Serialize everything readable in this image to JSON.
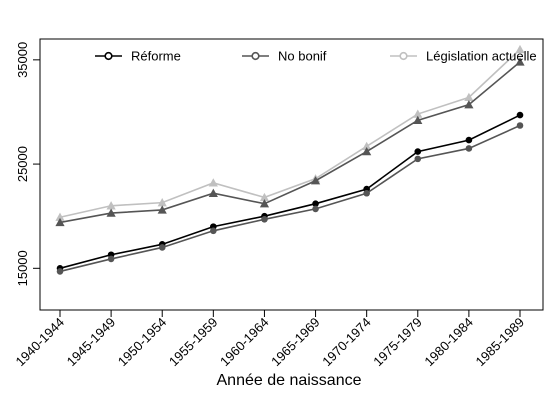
{
  "chart_data": {
    "type": "line",
    "title": "",
    "xlabel": "Année de naissance",
    "ylabel": "",
    "categories": [
      "1940-1944",
      "1945-1949",
      "1950-1954",
      "1955-1959",
      "1960-1964",
      "1965-1969",
      "1970-1974",
      "1975-1979",
      "1980-1984",
      "1985-1989"
    ],
    "ylim": [
      11000,
      37000
    ],
    "yticks": [
      "15000",
      "25000",
      "35000"
    ],
    "legend_position": "top",
    "series": [
      {
        "name": "Réforme",
        "marker": "circle",
        "color": "#000000",
        "values": [
          15000,
          16300,
          17300,
          19000,
          20000,
          21200,
          22600,
          26200,
          27300,
          29700
        ]
      },
      {
        "name": "No bonif",
        "marker": "circle",
        "color": "#555555",
        "values": [
          14700,
          15900,
          17000,
          18600,
          19700,
          20700,
          22200,
          25500,
          26500,
          28700
        ]
      },
      {
        "name": "Législation actuelle",
        "marker": "triangle",
        "color": "#c0c0c0",
        "values": [
          19900,
          21000,
          21300,
          23200,
          21800,
          23600,
          26700,
          29800,
          31400,
          36000
        ]
      },
      {
        "name": "",
        "marker": "triangle",
        "color": "#555555",
        "values": [
          19400,
          20300,
          20600,
          22200,
          21200,
          23400,
          26200,
          29200,
          30700,
          34800
        ]
      }
    ]
  }
}
